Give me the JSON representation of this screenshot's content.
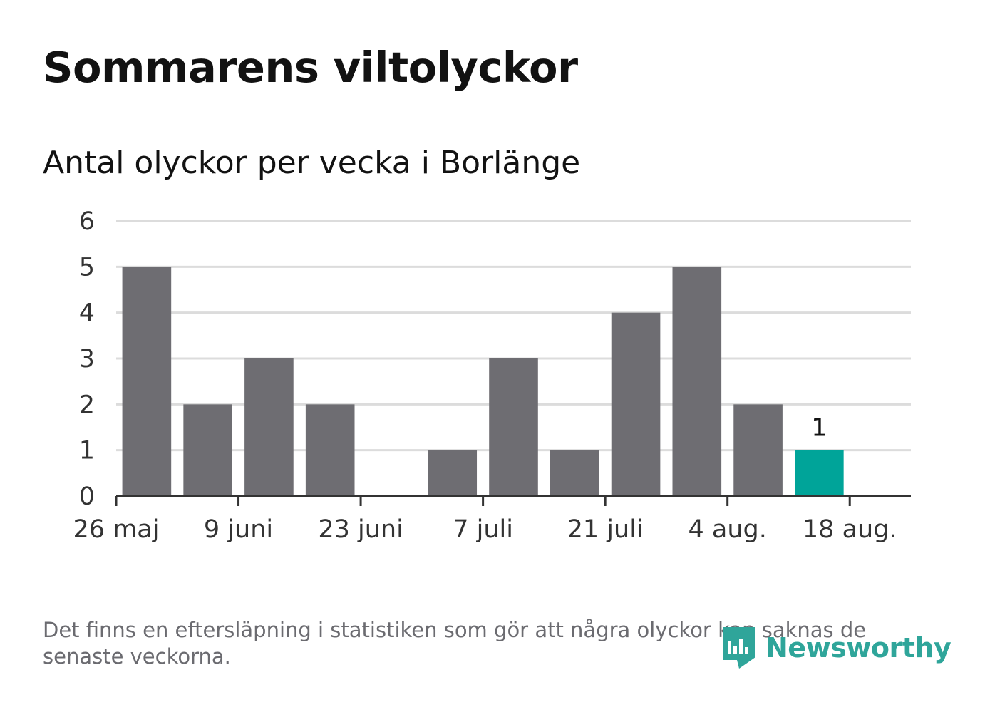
{
  "title": "Sommarens viltolyckor",
  "subtitle": "Antal olyckor per vecka i Borlänge",
  "footnote": "Det finns en eftersläpning i statistiken som gör att några olyckor kan saknas de senaste veckorna.",
  "logo": {
    "text": "Newsworthy",
    "icon": "newsworthy-logo-icon"
  },
  "colors": {
    "bar": "#6e6d72",
    "highlight": "#00a499",
    "grid": "#dcdcdc",
    "axis": "#333333",
    "text": "#333333",
    "logo": "#2fa59a"
  },
  "chart_data": {
    "type": "bar",
    "title": "Sommarens viltolyckor",
    "subtitle": "Antal olyckor per vecka i Borlänge",
    "weeks": [
      "2025-05-26",
      "2025-06-02",
      "2025-06-09",
      "2025-06-16",
      "2025-06-23",
      "2025-06-30",
      "2025-07-07",
      "2025-07-14",
      "2025-07-21",
      "2025-07-28",
      "2025-08-04",
      "2025-08-11",
      "2025-08-18"
    ],
    "values": [
      5,
      2,
      3,
      2,
      0,
      1,
      3,
      1,
      4,
      5,
      2,
      1,
      null
    ],
    "highlight_index": 11,
    "highlight_label": "1",
    "x_ticks": [
      {
        "week": "2025-05-26",
        "label": "26 maj"
      },
      {
        "week": "2025-06-09",
        "label": "9 juni"
      },
      {
        "week": "2025-06-23",
        "label": "23 juni"
      },
      {
        "week": "2025-07-07",
        "label": "7 juli"
      },
      {
        "week": "2025-07-21",
        "label": "21 juli"
      },
      {
        "week": "2025-08-04",
        "label": "4 aug."
      },
      {
        "week": "2025-08-18",
        "label": "18 aug."
      }
    ],
    "y_ticks": [
      0,
      1,
      2,
      3,
      4,
      5,
      6
    ],
    "ylim": [
      0,
      6
    ],
    "grid": true,
    "xlabel": "",
    "ylabel": ""
  }
}
